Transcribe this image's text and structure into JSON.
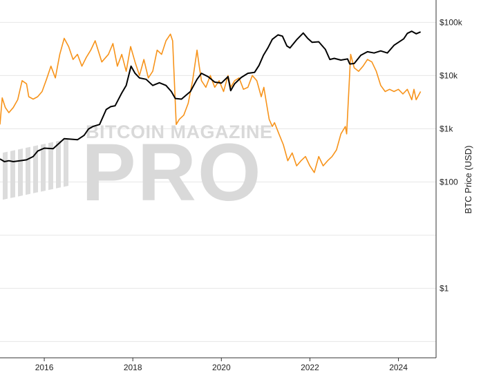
{
  "watermark": {
    "line1": "BITCOIN MAGAZINE",
    "line2": "PRO"
  },
  "chart_data": {
    "type": "line",
    "ylabel": "BTC Price (USD)",
    "y_scale": "log",
    "ylim": [
      0.1,
      300000
    ],
    "xlim": [
      2015.0,
      2024.85
    ],
    "grid": true,
    "x_ticks": [
      {
        "value": 2016,
        "label": "2016"
      },
      {
        "value": 2018,
        "label": "2018"
      },
      {
        "value": 2020,
        "label": "2020"
      },
      {
        "value": 2022,
        "label": "2022"
      },
      {
        "value": 2024,
        "label": "2024"
      }
    ],
    "y_ticks": [
      {
        "value": 1,
        "label": "$1"
      },
      {
        "value": 100,
        "label": "$100"
      },
      {
        "value": 1000,
        "label": "$1k"
      },
      {
        "value": 10000,
        "label": "$10k"
      },
      {
        "value": 100000,
        "label": "$100k"
      }
    ],
    "y_gridlines": [
      0.1,
      1,
      10,
      100,
      1000,
      10000,
      100000
    ],
    "colors": {
      "price": "#000000",
      "indicator": "#f7931a",
      "grid": "#e6e6e6",
      "axis": "#333333"
    },
    "series": [
      {
        "key": "price",
        "x": [
          2015.0,
          2015.1,
          2015.2,
          2015.3,
          2015.45,
          2015.6,
          2015.75,
          2015.85,
          2016.0,
          2016.2,
          2016.45,
          2016.55,
          2016.75,
          2016.9,
          2017.0,
          2017.1,
          2017.25,
          2017.4,
          2017.5,
          2017.6,
          2017.75,
          2017.85,
          2017.96,
          2018.05,
          2018.15,
          2018.3,
          2018.45,
          2018.6,
          2018.75,
          2018.87,
          2018.96,
          2019.1,
          2019.3,
          2019.45,
          2019.55,
          2019.7,
          2019.85,
          2020.0,
          2020.15,
          2020.21,
          2020.3,
          2020.45,
          2020.6,
          2020.75,
          2020.85,
          2020.95,
          2021.05,
          2021.15,
          2021.28,
          2021.38,
          2021.48,
          2021.55,
          2021.7,
          2021.85,
          2021.95,
          2022.05,
          2022.2,
          2022.35,
          2022.45,
          2022.55,
          2022.7,
          2022.85,
          2022.9,
          2023.0,
          2023.15,
          2023.3,
          2023.45,
          2023.6,
          2023.75,
          2023.9,
          2024.0,
          2024.12,
          2024.2,
          2024.3,
          2024.4,
          2024.5
        ],
        "y": [
          270,
          240,
          250,
          240,
          250,
          260,
          300,
          380,
          430,
          420,
          650,
          640,
          620,
          750,
          990,
          1100,
          1200,
          2300,
          2600,
          2700,
          4700,
          6500,
          15000,
          11000,
          9000,
          8500,
          6500,
          7300,
          6500,
          5000,
          3700,
          3600,
          5000,
          8500,
          11000,
          9500,
          7500,
          7200,
          9500,
          5200,
          7000,
          9200,
          11000,
          11500,
          15500,
          24000,
          33000,
          48000,
          58000,
          55000,
          36000,
          33000,
          47000,
          63000,
          50000,
          42000,
          43000,
          31000,
          20000,
          21000,
          19500,
          20500,
          16500,
          16800,
          24000,
          28000,
          26500,
          29000,
          26500,
          37000,
          42000,
          49000,
          62000,
          68000,
          61000,
          66000
        ]
      },
      {
        "key": "indicator",
        "x": [
          2015.0,
          2015.05,
          2015.12,
          2015.2,
          2015.3,
          2015.4,
          2015.5,
          2015.6,
          2015.65,
          2015.75,
          2015.85,
          2015.95,
          2016.05,
          2016.15,
          2016.25,
          2016.35,
          2016.45,
          2016.55,
          2016.65,
          2016.75,
          2016.85,
          2016.95,
          2017.05,
          2017.15,
          2017.3,
          2017.45,
          2017.55,
          2017.65,
          2017.75,
          2017.85,
          2017.95,
          2018.05,
          2018.15,
          2018.25,
          2018.35,
          2018.45,
          2018.55,
          2018.65,
          2018.75,
          2018.85,
          2018.9,
          2018.98,
          2019.05,
          2019.15,
          2019.25,
          2019.35,
          2019.45,
          2019.5,
          2019.55,
          2019.65,
          2019.75,
          2019.85,
          2019.95,
          2020.05,
          2020.15,
          2020.21,
          2020.3,
          2020.4,
          2020.5,
          2020.6,
          2020.7,
          2020.8,
          2020.9,
          2020.96,
          2021.02,
          2021.08,
          2021.15,
          2021.2,
          2021.3,
          2021.4,
          2021.5,
          2021.6,
          2021.7,
          2021.8,
          2021.9,
          2022.0,
          2022.1,
          2022.2,
          2022.3,
          2022.4,
          2022.5,
          2022.6,
          2022.7,
          2022.8,
          2022.83,
          2022.86,
          2022.92,
          2023.0,
          2023.1,
          2023.2,
          2023.3,
          2023.4,
          2023.5,
          2023.6,
          2023.7,
          2023.8,
          2023.9,
          2024.0,
          2024.1,
          2024.2,
          2024.3,
          2024.35,
          2024.4,
          2024.5
        ],
        "y": [
          1200,
          3800,
          2500,
          2000,
          2500,
          3500,
          8000,
          7000,
          4000,
          3600,
          4000,
          5000,
          8500,
          15000,
          9000,
          25000,
          50000,
          35000,
          20000,
          25000,
          15000,
          22000,
          30000,
          45000,
          18000,
          25000,
          40000,
          15000,
          25000,
          12000,
          35000,
          18000,
          10000,
          20000,
          9000,
          12000,
          30000,
          25000,
          45000,
          60000,
          45000,
          1200,
          1500,
          1800,
          3000,
          8000,
          30000,
          15000,
          8000,
          6000,
          10000,
          6000,
          8000,
          5000,
          10000,
          6000,
          8000,
          9000,
          5500,
          6000,
          10000,
          8000,
          4000,
          6000,
          3000,
          1500,
          1100,
          1300,
          800,
          500,
          250,
          350,
          200,
          250,
          300,
          200,
          150,
          300,
          200,
          250,
          300,
          400,
          800,
          1100,
          800,
          2500,
          25000,
          14000,
          12000,
          15000,
          20000,
          18000,
          12000,
          6500,
          5000,
          5500,
          5000,
          5500,
          4500,
          5500,
          3500,
          5500,
          3500,
          5000
        ]
      }
    ]
  }
}
